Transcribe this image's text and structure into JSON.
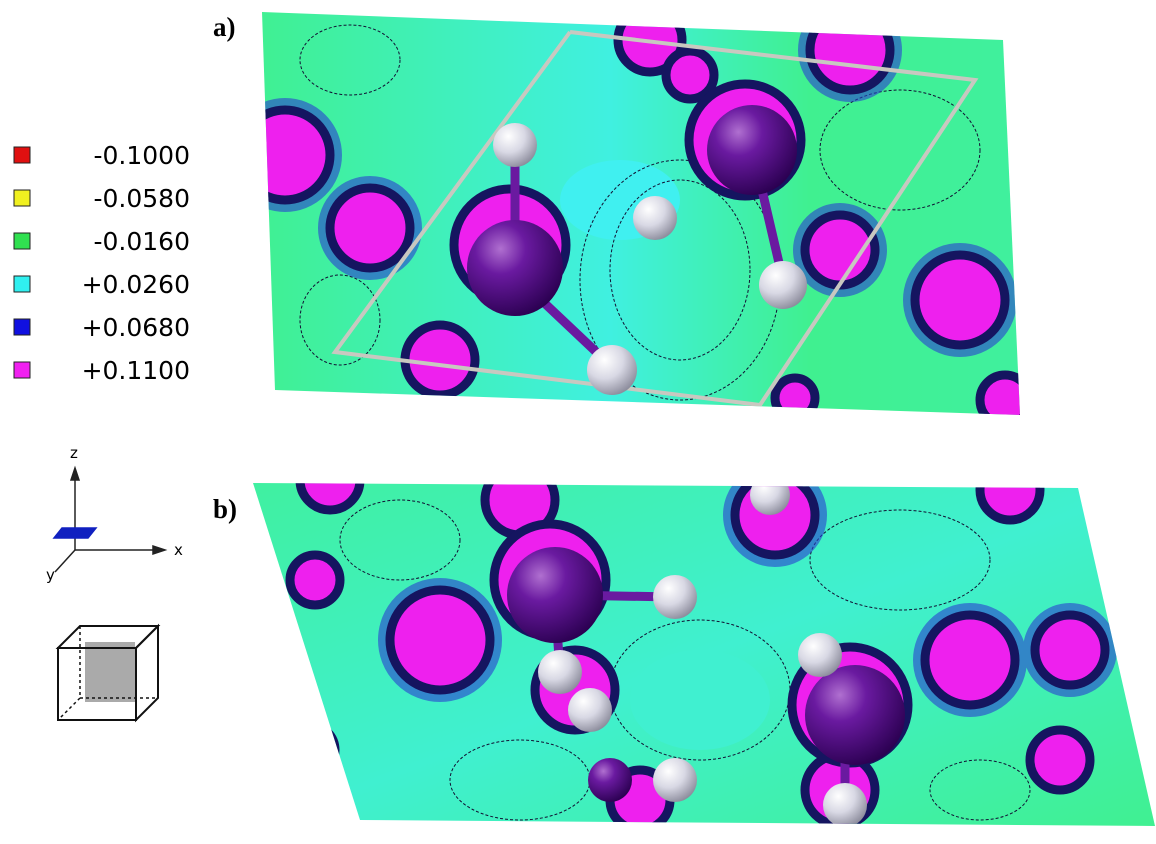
{
  "panels": [
    {
      "label": "a)"
    },
    {
      "label": "b)"
    }
  ],
  "legend": {
    "items": [
      {
        "label": "-0.1000",
        "color": "#e01010"
      },
      {
        "label": "-0.0580",
        "color": "#f0f020"
      },
      {
        "label": "-0.0160",
        "color": "#30e050"
      },
      {
        "label": "+0.0260",
        "color": "#30f0f0"
      },
      {
        "label": "+0.0680",
        "color": "#1010e0"
      },
      {
        "label": "+0.1100",
        "color": "#f020f0"
      }
    ]
  },
  "axes": {
    "z": "z",
    "x": "x",
    "y": "y"
  }
}
